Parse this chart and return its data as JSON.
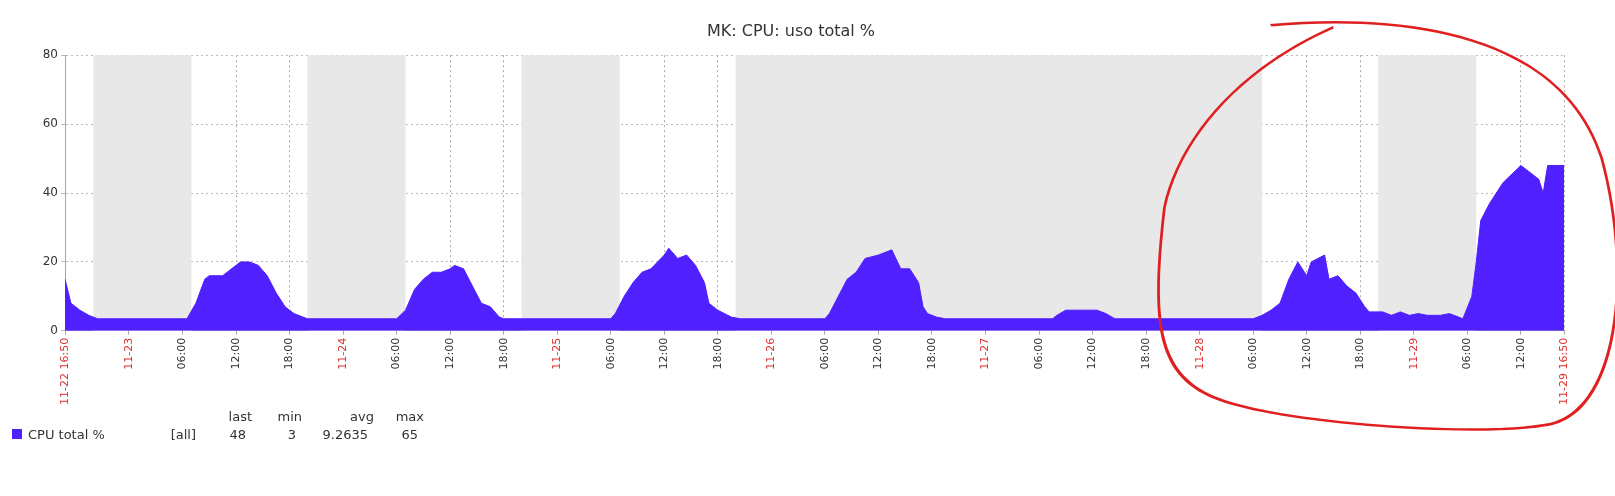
{
  "chart_data": {
    "type": "area",
    "title": "MK: CPU: uso total %",
    "x": [
      "--11-22T16:50",
      "--11-22T17:30",
      "--11-22T18:30",
      "--11-22T19:30",
      "--11-22T20:30",
      "--11-23T06:30",
      "--11-23T07:30",
      "--11-23T08:30",
      "--11-23T09:00",
      "--11-23T10:30",
      "--11-23T11:30",
      "--11-23T12:30",
      "--11-23T13:30",
      "--11-23T14:30",
      "--11-23T15:30",
      "--11-23T16:30",
      "--11-23T17:30",
      "--11-23T18:30",
      "--11-23T19:30",
      "--11-23T20:00",
      "--11-24T06:00",
      "--11-24T07:00",
      "--11-24T08:00",
      "--11-24T09:00",
      "--11-24T10:00",
      "--11-24T11:00",
      "--11-24T12:00",
      "--11-24T12:30",
      "--11-24T13:30",
      "--11-24T14:30",
      "--11-24T15:30",
      "--11-24T16:30",
      "--11-24T17:30",
      "--11-24T18:00",
      "--11-25T06:00",
      "--11-25T06:30",
      "--11-25T07:30",
      "--11-25T08:30",
      "--11-25T09:30",
      "--11-25T10:30",
      "--11-25T12:00",
      "--11-25T12:30",
      "--11-25T13:30",
      "--11-25T14:30",
      "--11-25T15:30",
      "--11-25T16:30",
      "--11-25T17:00",
      "--11-25T18:00",
      "--11-25T19:30",
      "--11-25T20:30",
      "--11-26T06:00",
      "--11-26T06:30",
      "--11-26T07:30",
      "--11-26T08:30",
      "--11-26T09:30",
      "--11-26T10:30",
      "--11-26T12:00",
      "--11-26T13:30",
      "--11-26T14:30",
      "--11-26T15:30",
      "--11-26T16:30",
      "--11-26T17:00",
      "--11-26T17:30",
      "--11-26T18:30",
      "--11-26T19:30",
      "--11-27T07:30",
      "--11-27T08:00",
      "--11-27T09:00",
      "--11-27T12:30",
      "--11-27T13:30",
      "--11-27T14:30",
      "--11-28T06:00",
      "--11-28T07:00",
      "--11-28T08:00",
      "--11-28T09:00",
      "--11-28T10:00",
      "--11-28T11:00",
      "--11-28T12:00",
      "--11-28T12:30",
      "--11-28T14:00",
      "--11-28T14:30",
      "--11-28T15:30",
      "--11-28T16:30",
      "--11-28T17:30",
      "--11-28T18:30",
      "--11-28T19:00",
      "--11-28T20:30",
      "--11-28T21:30",
      "--11-28T22:30",
      "--11-28T23:30",
      "--11-29T00:30",
      "--11-29T01:30",
      "--11-29T03:00",
      "--11-29T04:00",
      "--11-29T04:30",
      "--11-29T05:30",
      "--11-29T06:30",
      "--11-29T07:00",
      "--11-29T07:30",
      "--11-29T08:30",
      "--11-29T10:00",
      "--11-29T12:00",
      "--11-29T13:00",
      "--11-29T14:00",
      "--11-29T14:30",
      "--11-29T15:00",
      "--11-29T16:50"
    ],
    "series": [
      {
        "name": "CPU total %",
        "color": "#5020ff",
        "values": [
          15,
          8,
          6,
          4.5,
          3.5,
          3.5,
          8,
          15,
          16,
          16,
          18,
          20,
          20,
          19,
          16,
          11,
          7,
          5,
          4,
          3.5,
          3.5,
          6,
          12,
          15,
          17,
          17,
          18,
          19,
          18,
          13,
          8,
          7,
          4,
          3.5,
          3.5,
          5,
          10,
          14,
          17,
          18,
          22,
          24,
          21,
          22,
          19,
          14,
          8,
          6,
          4,
          3.5,
          3.5,
          5,
          10,
          15,
          17,
          21,
          22,
          23.5,
          18,
          18,
          14,
          7,
          5,
          4,
          3.5,
          3.5,
          4.5,
          6,
          6,
          5,
          3.5,
          3.5,
          4.5,
          6,
          8,
          15,
          20,
          16,
          20,
          22,
          15,
          16,
          13,
          11,
          7,
          5.5,
          5.5,
          4.5,
          5.5,
          4.5,
          5,
          4.5,
          4.5,
          5,
          4.5,
          3.5,
          10,
          20,
          32,
          37,
          43,
          48,
          46,
          44,
          40,
          48,
          48
        ]
      }
    ],
    "xlim": [
      "--11-22T16:50",
      "--11-29T16:50"
    ],
    "xticks": [
      {
        "value": "--11-22T16:50",
        "label": "11-22 16:50"
      },
      {
        "value": "--11-23T00:00",
        "label": "11-23"
      },
      {
        "value": "--11-23T06:00",
        "label": "06:00"
      },
      {
        "value": "--11-23T12:00",
        "label": "12:00"
      },
      {
        "value": "--11-23T18:00",
        "label": "18:00"
      },
      {
        "value": "--11-24T00:00",
        "label": "11-24"
      },
      {
        "value": "--11-24T06:00",
        "label": "06:00"
      },
      {
        "value": "--11-24T12:00",
        "label": "12:00"
      },
      {
        "value": "--11-24T18:00",
        "label": "18:00"
      },
      {
        "value": "--11-25T00:00",
        "label": "11-25"
      },
      {
        "value": "--11-25T06:00",
        "label": "06:00"
      },
      {
        "value": "--11-25T12:00",
        "label": "12:00"
      },
      {
        "value": "--11-25T18:00",
        "label": "18:00"
      },
      {
        "value": "--11-26T00:00",
        "label": "11-26"
      },
      {
        "value": "--11-26T06:00",
        "label": "06:00"
      },
      {
        "value": "--11-26T12:00",
        "label": "12:00"
      },
      {
        "value": "--11-26T18:00",
        "label": "18:00"
      },
      {
        "value": "--11-27T00:00",
        "label": "11-27"
      },
      {
        "value": "--11-27T06:00",
        "label": "06:00"
      },
      {
        "value": "--11-27T12:00",
        "label": "12:00"
      },
      {
        "value": "--11-27T18:00",
        "label": "18:00"
      },
      {
        "value": "--11-28T00:00",
        "label": "11-28"
      },
      {
        "value": "--11-28T06:00",
        "label": "06:00"
      },
      {
        "value": "--11-28T12:00",
        "label": "12:00"
      },
      {
        "value": "--11-28T18:00",
        "label": "18:00"
      },
      {
        "value": "--11-29T00:00",
        "label": "11-29"
      },
      {
        "value": "--11-29T06:00",
        "label": "06:00"
      },
      {
        "value": "--11-29T12:00",
        "label": "12:00"
      },
      {
        "value": "--11-29T16:50",
        "label": "11-29 16:50"
      }
    ],
    "ylim": [
      0,
      80
    ],
    "yticks": [
      0,
      20,
      40,
      60,
      80
    ],
    "grid": true,
    "legend": "bottom",
    "bands": [
      {
        "axis": "x",
        "from": "--11-22T20:00",
        "to": "--11-23T07:00",
        "color": "#e8e8e8"
      },
      {
        "axis": "x",
        "from": "--11-23T20:00",
        "to": "--11-24T07:00",
        "color": "#e8e8e8"
      },
      {
        "axis": "x",
        "from": "--11-24T20:00",
        "to": "--11-25T07:00",
        "color": "#e8e8e8"
      },
      {
        "axis": "x",
        "from": "--11-25T20:00",
        "to": "--11-28T07:00",
        "color": "#e8e8e8"
      },
      {
        "axis": "x",
        "from": "--11-28T20:00",
        "to": "--11-29T07:00",
        "color": "#e8e8e8"
      }
    ],
    "annotations": [
      "last",
      "min",
      "avg",
      "max",
      "[all]",
      "48",
      "3",
      "9.2635",
      "65"
    ]
  }
}
